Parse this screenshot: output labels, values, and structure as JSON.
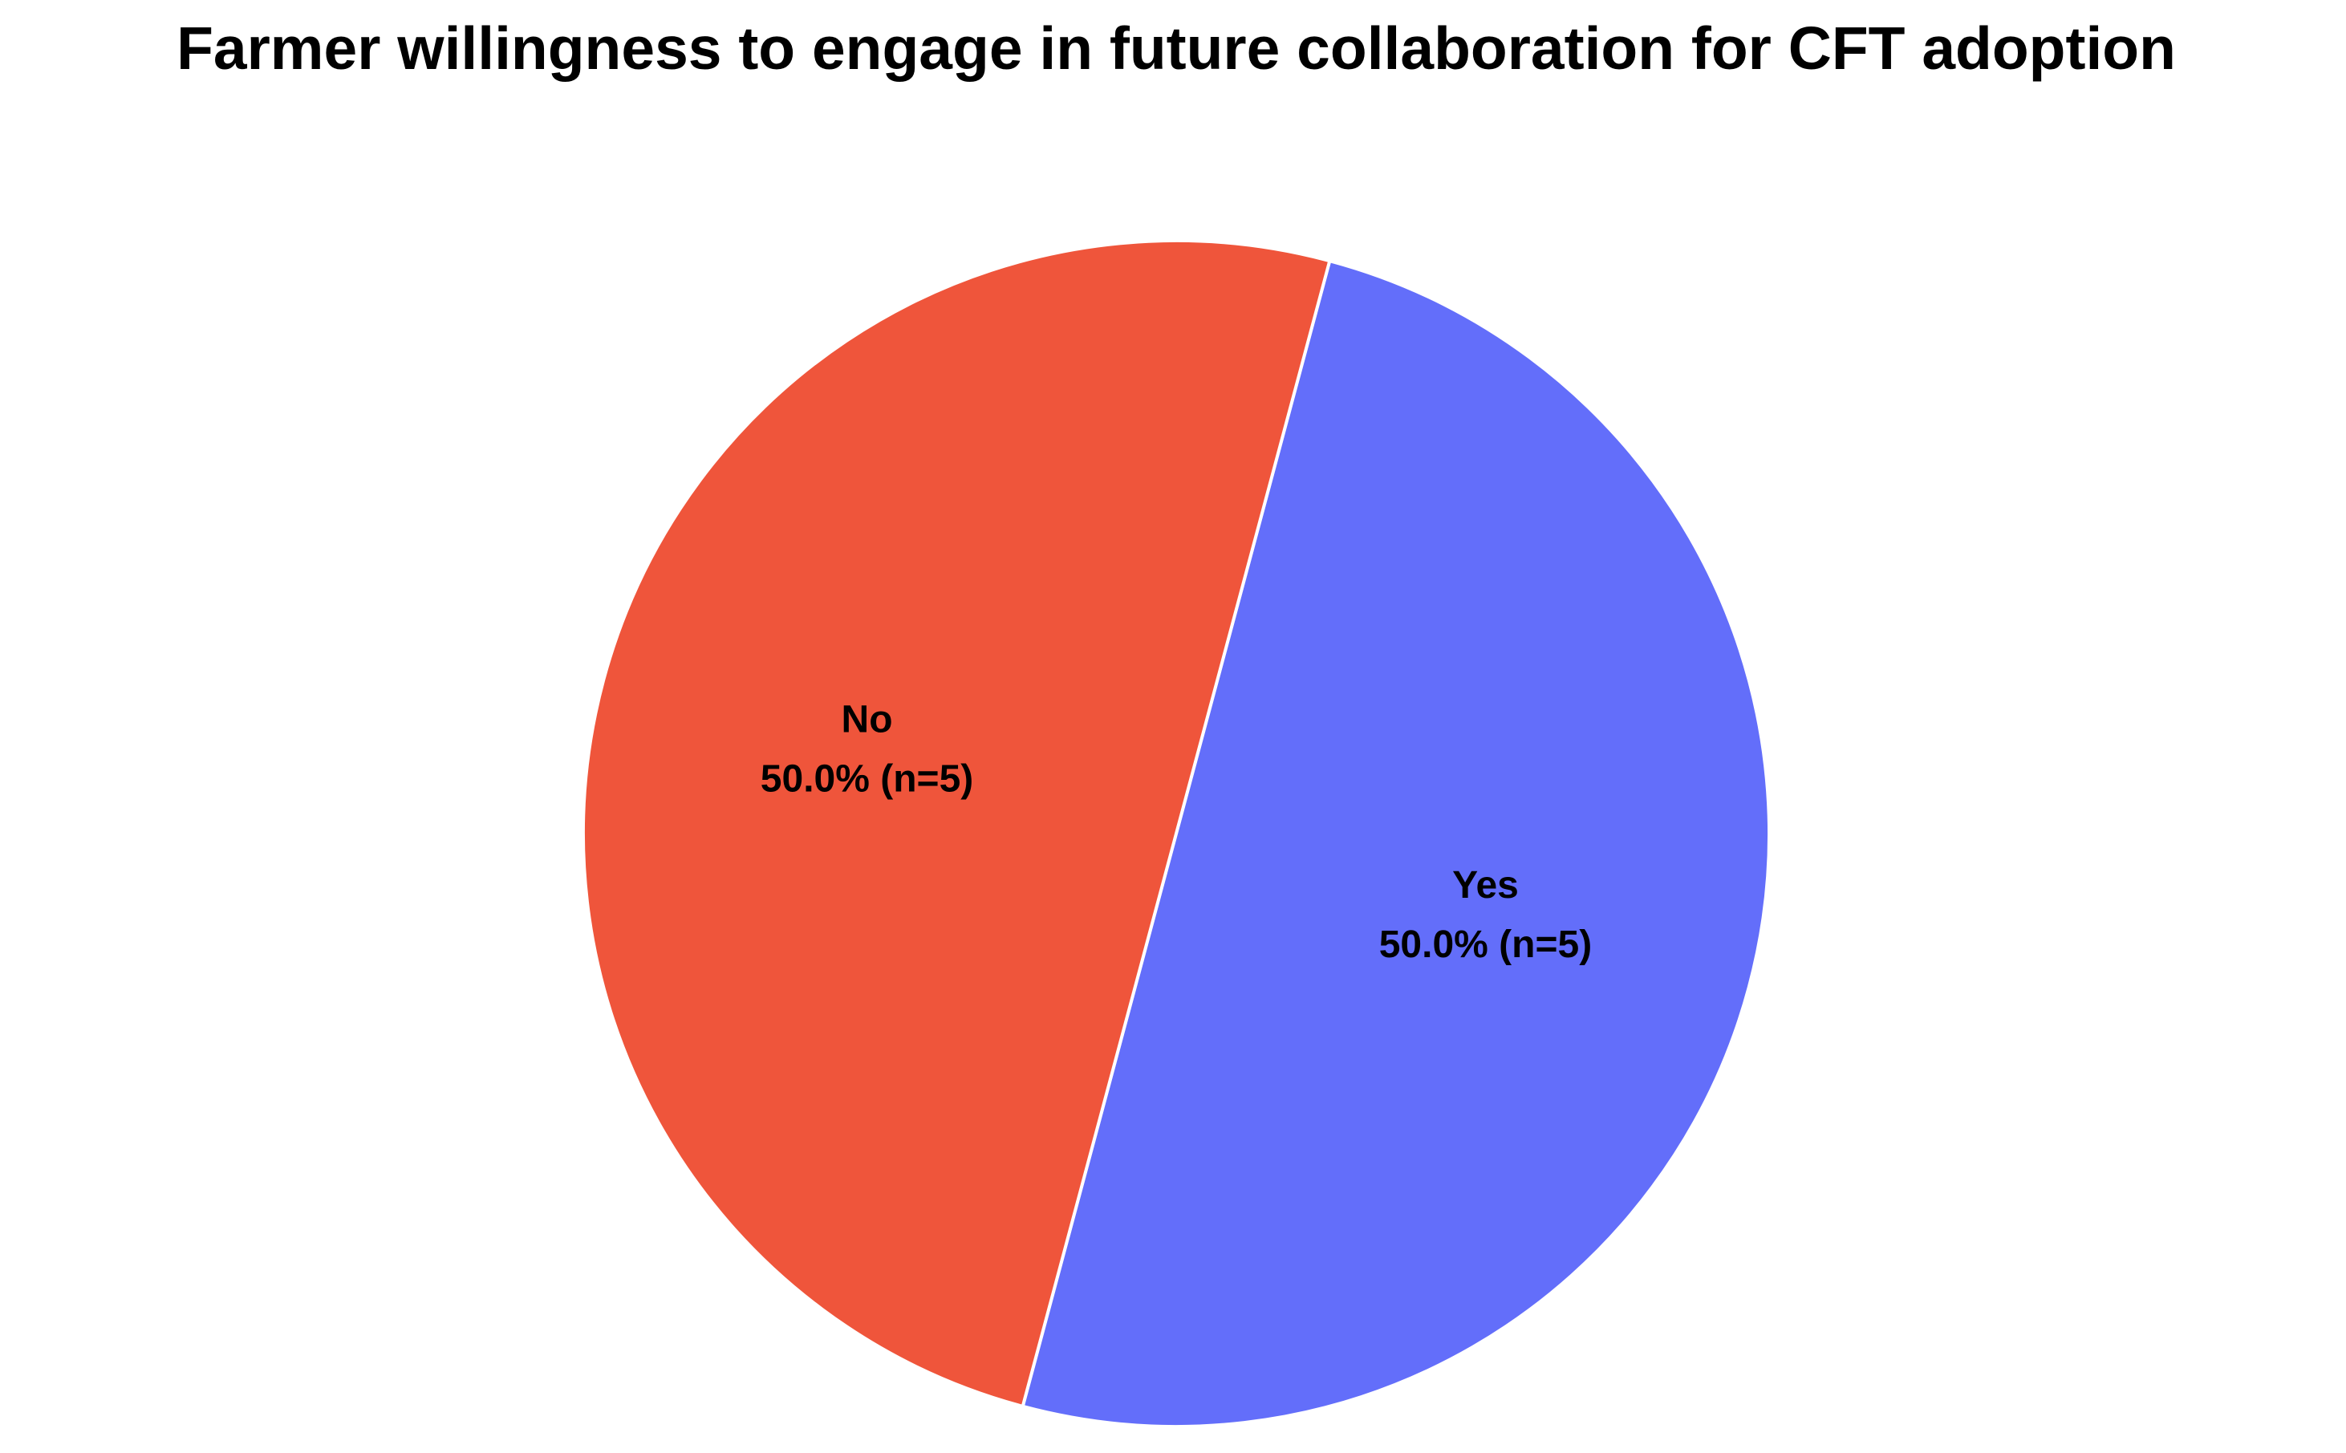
{
  "chart_data": {
    "type": "pie",
    "title": "Farmer willingness to engage in future collaboration for CFT adoption",
    "categories": [
      "Yes",
      "No"
    ],
    "values": [
      50,
      50
    ],
    "value_labels": [
      "50.0% (n=5)",
      "50.0% (n=5)"
    ],
    "colors": [
      "#636efa",
      "#ef553b"
    ]
  }
}
